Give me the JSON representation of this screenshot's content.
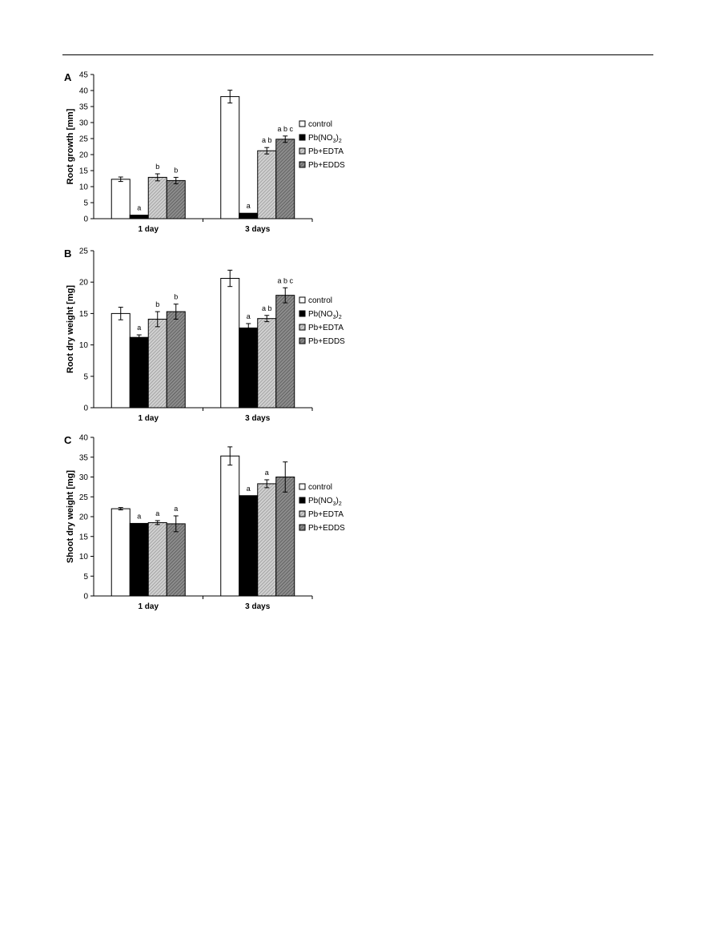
{
  "series_styles": [
    {
      "key": "control",
      "fill": "#ffffff"
    },
    {
      "key": "pb",
      "fill": "#000000"
    },
    {
      "key": "edta",
      "fill": "#b8b8b8",
      "pattern": "hatch-light"
    },
    {
      "key": "edds",
      "fill": "#7a7a7a",
      "pattern": "hatch-dark"
    }
  ],
  "chart_data": [
    {
      "type": "bar",
      "panel_label": "A",
      "ylabel": "Root growth [mm]",
      "categories": [
        "1 day",
        "3 days"
      ],
      "ylim": [
        0,
        45
      ],
      "yticks": [
        0,
        5,
        10,
        15,
        20,
        25,
        30,
        35,
        40,
        45
      ],
      "legend": [
        "control",
        "Pb(NO",
        "Pb+EDTA",
        "Pb+EDDS"
      ],
      "legend_sub": [
        "",
        "3",
        "",
        ""
      ],
      "legend_tail": [
        "",
        ")2",
        "",
        ""
      ],
      "series": [
        {
          "name": "control",
          "values": [
            12.3,
            38.1
          ],
          "errors": [
            0.7,
            2.0
          ],
          "sig": [
            "",
            ""
          ]
        },
        {
          "name": "Pb(NO3)2",
          "values": [
            1.1,
            1.7
          ],
          "errors": [
            0,
            0
          ],
          "sig": [
            "a",
            "a"
          ]
        },
        {
          "name": "Pb+EDTA",
          "values": [
            12.9,
            21.2
          ],
          "errors": [
            1.1,
            1.0
          ],
          "sig": [
            "b",
            "a b"
          ]
        },
        {
          "name": "Pb+EDDS",
          "values": [
            11.9,
            24.8
          ],
          "errors": [
            1.0,
            1.0
          ],
          "sig": [
            "b",
            "a b c"
          ]
        }
      ]
    },
    {
      "type": "bar",
      "panel_label": "B",
      "ylabel": "Root dry weight [mg]",
      "categories": [
        "1 day",
        "3 days"
      ],
      "ylim": [
        0,
        25
      ],
      "yticks": [
        0,
        5,
        10,
        15,
        20,
        25
      ],
      "legend": [
        "control",
        "Pb(NO",
        "Pb+EDTA",
        "Pb+EDDS"
      ],
      "legend_sub": [
        "",
        "3",
        "",
        ""
      ],
      "legend_tail": [
        "",
        ")2",
        "",
        ""
      ],
      "series": [
        {
          "name": "control",
          "values": [
            15.0,
            20.6
          ],
          "errors": [
            1.0,
            1.3
          ],
          "sig": [
            "",
            ""
          ]
        },
        {
          "name": "Pb(NO3)2",
          "values": [
            11.2,
            12.7
          ],
          "errors": [
            0.4,
            0.7
          ],
          "sig": [
            "a",
            "a"
          ]
        },
        {
          "name": "Pb+EDTA",
          "values": [
            14.1,
            14.2
          ],
          "errors": [
            1.2,
            0.5
          ],
          "sig": [
            "b",
            "a b"
          ]
        },
        {
          "name": "Pb+EDDS",
          "values": [
            15.3,
            17.9
          ],
          "errors": [
            1.2,
            1.2
          ],
          "sig": [
            "b",
            "a b c"
          ]
        }
      ]
    },
    {
      "type": "bar",
      "panel_label": "C",
      "ylabel": "Shoot dry weight [mg]",
      "categories": [
        "1 day",
        "3 days"
      ],
      "ylim": [
        0,
        40
      ],
      "yticks": [
        0,
        5,
        10,
        15,
        20,
        25,
        30,
        35,
        40
      ],
      "legend": [
        "control",
        "Pb(NO",
        "Pb+EDTA",
        "Pb+EDDS"
      ],
      "legend_sub": [
        "",
        "3",
        "",
        ""
      ],
      "legend_tail": [
        "",
        ")2",
        "",
        ""
      ],
      "series": [
        {
          "name": "control",
          "values": [
            22.0,
            35.3
          ],
          "errors": [
            0.3,
            2.3
          ],
          "sig": [
            "",
            ""
          ]
        },
        {
          "name": "Pb(NO3)2",
          "values": [
            18.3,
            25.3
          ],
          "errors": [
            0,
            0
          ],
          "sig": [
            "a",
            "a"
          ]
        },
        {
          "name": "Pb+EDTA",
          "values": [
            18.5,
            28.3
          ],
          "errors": [
            0.5,
            1.0
          ],
          "sig": [
            "a",
            "a"
          ]
        },
        {
          "name": "Pb+EDDS",
          "values": [
            18.2,
            30.0
          ],
          "errors": [
            2.0,
            3.8
          ],
          "sig": [
            "a",
            ""
          ]
        }
      ]
    }
  ]
}
